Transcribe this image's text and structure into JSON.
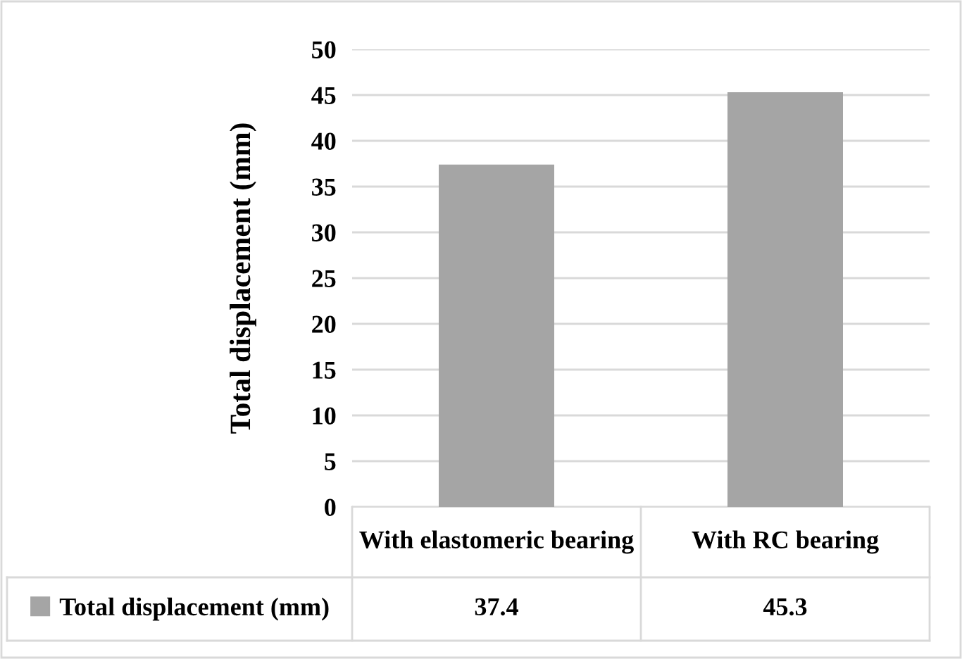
{
  "chart_data": {
    "type": "bar",
    "ylabel": "Total displacement (mm)",
    "categories": [
      "With elastomeric bearing",
      "With RC bearing"
    ],
    "series": [
      {
        "name": "Total displacement (mm)",
        "color": "#a5a5a5",
        "values": [
          37.4,
          45.3
        ]
      }
    ],
    "ylim": [
      0,
      50
    ],
    "yticks": [
      0,
      5,
      10,
      15,
      20,
      25,
      30,
      35,
      40,
      45,
      50
    ],
    "grid": "y",
    "legend": "bottom",
    "data_labels": true
  }
}
